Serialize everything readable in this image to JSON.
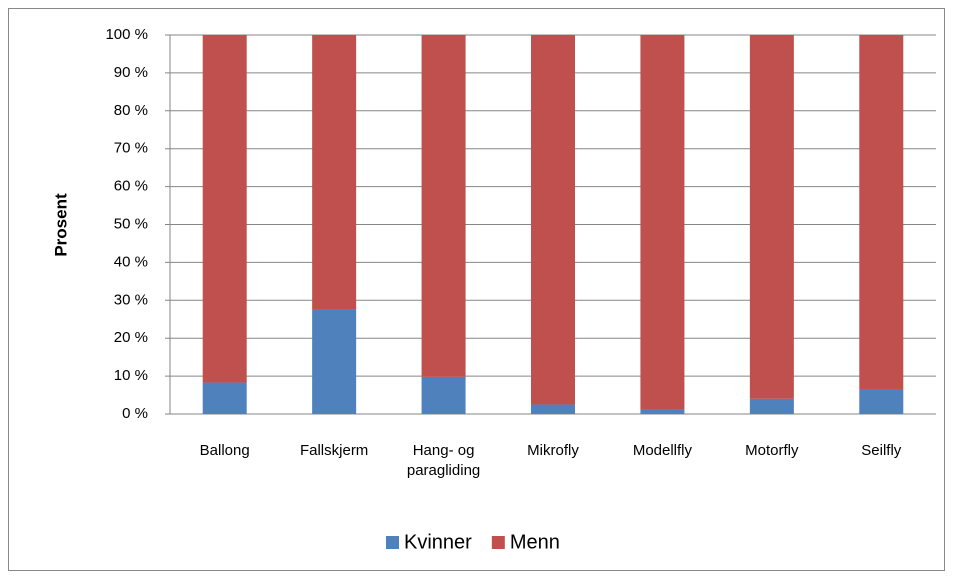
{
  "chart_data": {
    "type": "stacked_bar",
    "y_label": "Prosent",
    "categories": [
      "Ballong",
      "Fallskjerm",
      "Hang- og paragliding",
      "Mikrofly",
      "Modellfly",
      "Motorfly",
      "Seilfly"
    ],
    "series": [
      {
        "name": "Kvinner",
        "color": "#4f81bd",
        "values": [
          8.3,
          27.7,
          9.8,
          2.5,
          1.2,
          4.0,
          6.6
        ]
      },
      {
        "name": "Menn",
        "color": "#c0504d",
        "values": [
          91.7,
          72.3,
          90.2,
          97.5,
          98.8,
          96.0,
          93.4
        ]
      }
    ],
    "ylim": [
      0,
      100
    ],
    "yticks": [
      {
        "value": 0,
        "label": "0 %"
      },
      {
        "value": 10,
        "label": "10 %"
      },
      {
        "value": 20,
        "label": "20 %"
      },
      {
        "value": 30,
        "label": "30 %"
      },
      {
        "value": 40,
        "label": "40 %"
      },
      {
        "value": 50,
        "label": "50 %"
      },
      {
        "value": 60,
        "label": "60 %"
      },
      {
        "value": 70,
        "label": "70 %"
      },
      {
        "value": 80,
        "label": "80 %"
      },
      {
        "value": 90,
        "label": "90 %"
      },
      {
        "value": 100,
        "label": "100 %"
      }
    ],
    "grid": true,
    "legend": "bottom"
  }
}
